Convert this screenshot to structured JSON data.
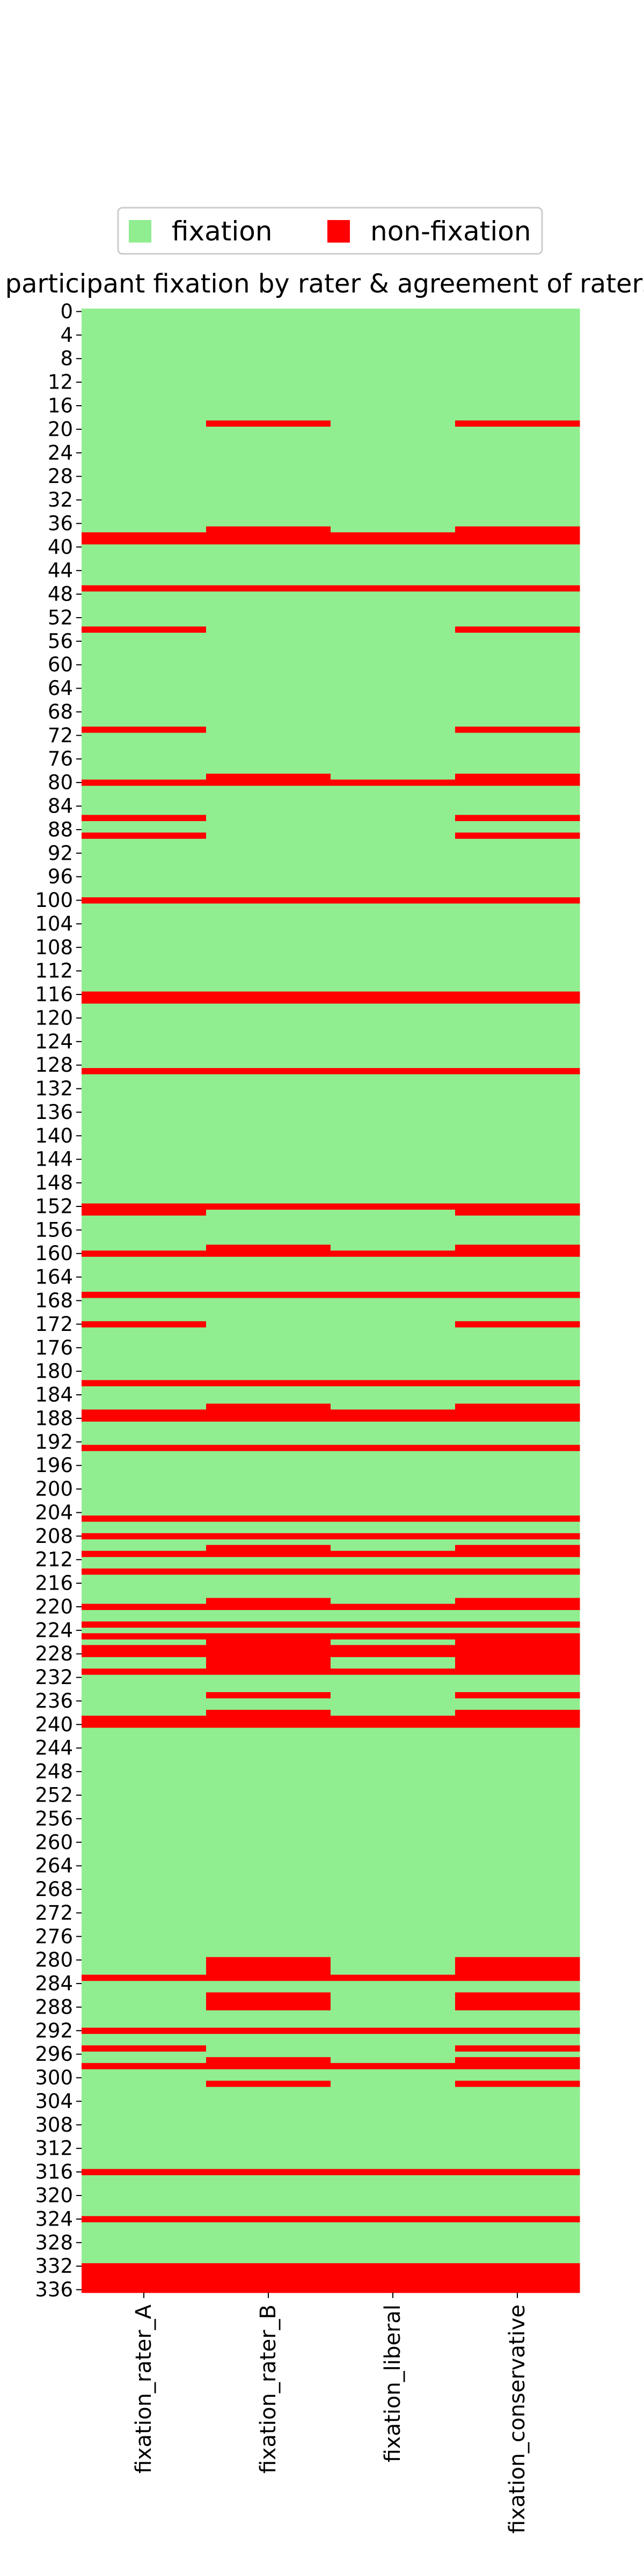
{
  "chart_data": {
    "type": "heatmap",
    "title": "participant fixation by rater & agreement of raters",
    "xlabel": "",
    "ylabel": "",
    "columns": [
      "fixation_rater_A",
      "fixation_rater_B",
      "fixation_liberal",
      "fixation_conservative"
    ],
    "y_range": [
      0,
      336
    ],
    "y_ticks_step": 4,
    "legend": {
      "placement": "top",
      "items": [
        {
          "label": "fixation",
          "color": "#90ee90"
        },
        {
          "label": "non-fixation",
          "color": "#ff0000"
        }
      ]
    },
    "colors": {
      "fixation": "#90ee90",
      "non-fixation": "#ff0000"
    },
    "non_fixation_rows": {
      "fixation_rater_A": [
        38,
        39,
        47,
        54,
        71,
        80,
        86,
        89,
        100,
        116,
        117,
        129,
        152,
        153,
        160,
        167,
        172,
        182,
        187,
        188,
        193,
        205,
        208,
        211,
        214,
        220,
        223,
        225,
        227,
        228,
        231,
        239,
        240,
        283,
        292,
        295,
        298,
        316,
        324,
        332,
        333,
        334,
        335,
        336
      ],
      "fixation_rater_B": [
        19,
        37,
        38,
        39,
        47,
        79,
        80,
        100,
        116,
        117,
        129,
        152,
        159,
        160,
        167,
        182,
        186,
        187,
        188,
        193,
        205,
        208,
        210,
        211,
        214,
        219,
        220,
        223,
        225,
        226,
        227,
        228,
        229,
        230,
        231,
        235,
        238,
        239,
        240,
        280,
        281,
        282,
        283,
        286,
        287,
        288,
        292,
        297,
        298,
        301,
        316,
        324,
        332,
        333,
        334,
        335,
        336
      ],
      "fixation_liberal": [
        38,
        39,
        47,
        80,
        100,
        116,
        117,
        129,
        152,
        160,
        167,
        182,
        187,
        188,
        193,
        205,
        208,
        211,
        214,
        220,
        223,
        225,
        227,
        228,
        231,
        239,
        240,
        283,
        292,
        298,
        316,
        324,
        332,
        333,
        334,
        335,
        336
      ],
      "fixation_conservative": [
        19,
        37,
        38,
        39,
        47,
        54,
        71,
        79,
        80,
        86,
        89,
        100,
        116,
        117,
        129,
        152,
        153,
        159,
        160,
        167,
        172,
        182,
        186,
        187,
        188,
        193,
        205,
        208,
        210,
        211,
        214,
        219,
        220,
        223,
        225,
        226,
        227,
        228,
        229,
        230,
        231,
        235,
        238,
        239,
        240,
        280,
        281,
        282,
        283,
        286,
        287,
        288,
        292,
        295,
        297,
        298,
        301,
        316,
        324,
        332,
        333,
        334,
        335,
        336
      ]
    }
  }
}
